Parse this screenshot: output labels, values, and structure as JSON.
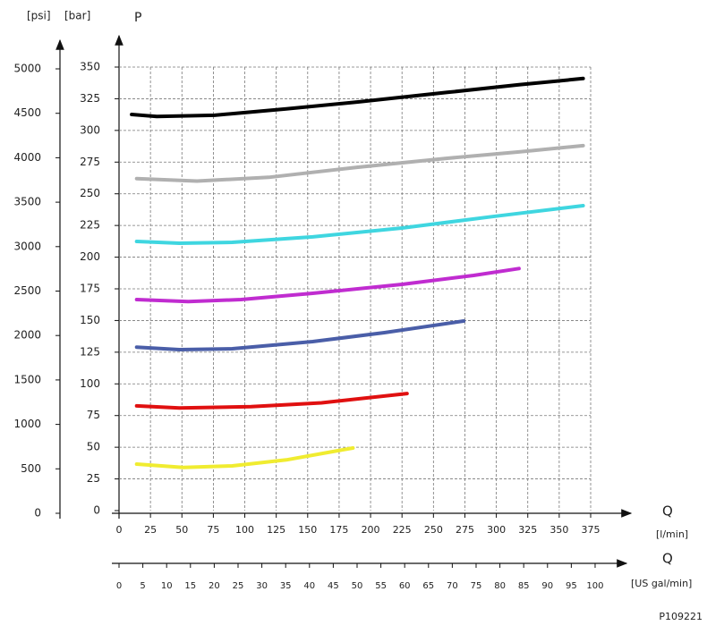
{
  "chart_data": {
    "type": "line",
    "y2_label": "[psi]",
    "y_label_unit": "[bar]",
    "y_label": "P",
    "x_label": "Q",
    "x_unit": "[l/min]",
    "x2_label": "Q",
    "x2_unit": "[US gal/min]",
    "figure_id": "P109221",
    "xlim": [
      0,
      375
    ],
    "xticks": [
      0,
      25,
      50,
      75,
      100,
      125,
      150,
      175,
      200,
      225,
      250,
      275,
      300,
      325,
      350,
      375
    ],
    "x2lim": [
      0,
      100
    ],
    "x2ticks": [
      0,
      5,
      10,
      15,
      20,
      25,
      30,
      35,
      40,
      45,
      50,
      55,
      60,
      65,
      70,
      75,
      80,
      85,
      90,
      95,
      100
    ],
    "ylim": [
      0,
      350
    ],
    "yticks": [
      0,
      25,
      50,
      75,
      100,
      125,
      150,
      175,
      200,
      225,
      250,
      275,
      300,
      325,
      350
    ],
    "y2lim": [
      0,
      5000
    ],
    "y2ticks": [
      0,
      500,
      1000,
      1500,
      2000,
      2500,
      3000,
      3500,
      4000,
      4500,
      5000
    ],
    "grid": true,
    "series": [
      {
        "color": "#000000",
        "x": [
          10,
          30,
          76,
          133,
          190,
          261,
          318,
          369
        ],
        "values": [
          312.6,
          311,
          312,
          317,
          322.5,
          330,
          336,
          341
        ]
      },
      {
        "color": "#b0b0b0",
        "x": [
          14,
          62,
          119,
          190,
          261,
          318,
          369
        ],
        "values": [
          262,
          260,
          263,
          271,
          278,
          283,
          288
        ]
      },
      {
        "color": "#3fd6e0",
        "x": [
          14,
          48,
          90,
          154,
          225,
          297,
          369
        ],
        "values": [
          212.4,
          211,
          211.7,
          216,
          223,
          232,
          240.6
        ]
      },
      {
        "color": "#c02cd0",
        "x": [
          14,
          55,
          97,
          154,
          225,
          282,
          318
        ],
        "values": [
          166.5,
          165,
          166.5,
          171.5,
          178.5,
          185.6,
          191
        ]
      },
      {
        "color": "#4a5ea8",
        "x": [
          14,
          48,
          90,
          154,
          211,
          274
        ],
        "values": [
          129,
          127,
          127.7,
          133.4,
          140.4,
          149.6
        ]
      },
      {
        "color": "#e01010",
        "x": [
          14,
          48,
          105,
          161,
          229
        ],
        "values": [
          82.6,
          81,
          82,
          85,
          92.4
        ]
      },
      {
        "color": "#f0ec30",
        "x": [
          14,
          51,
          90,
          133,
          186
        ],
        "values": [
          36.7,
          34,
          35.3,
          40,
          49.4
        ]
      }
    ]
  }
}
